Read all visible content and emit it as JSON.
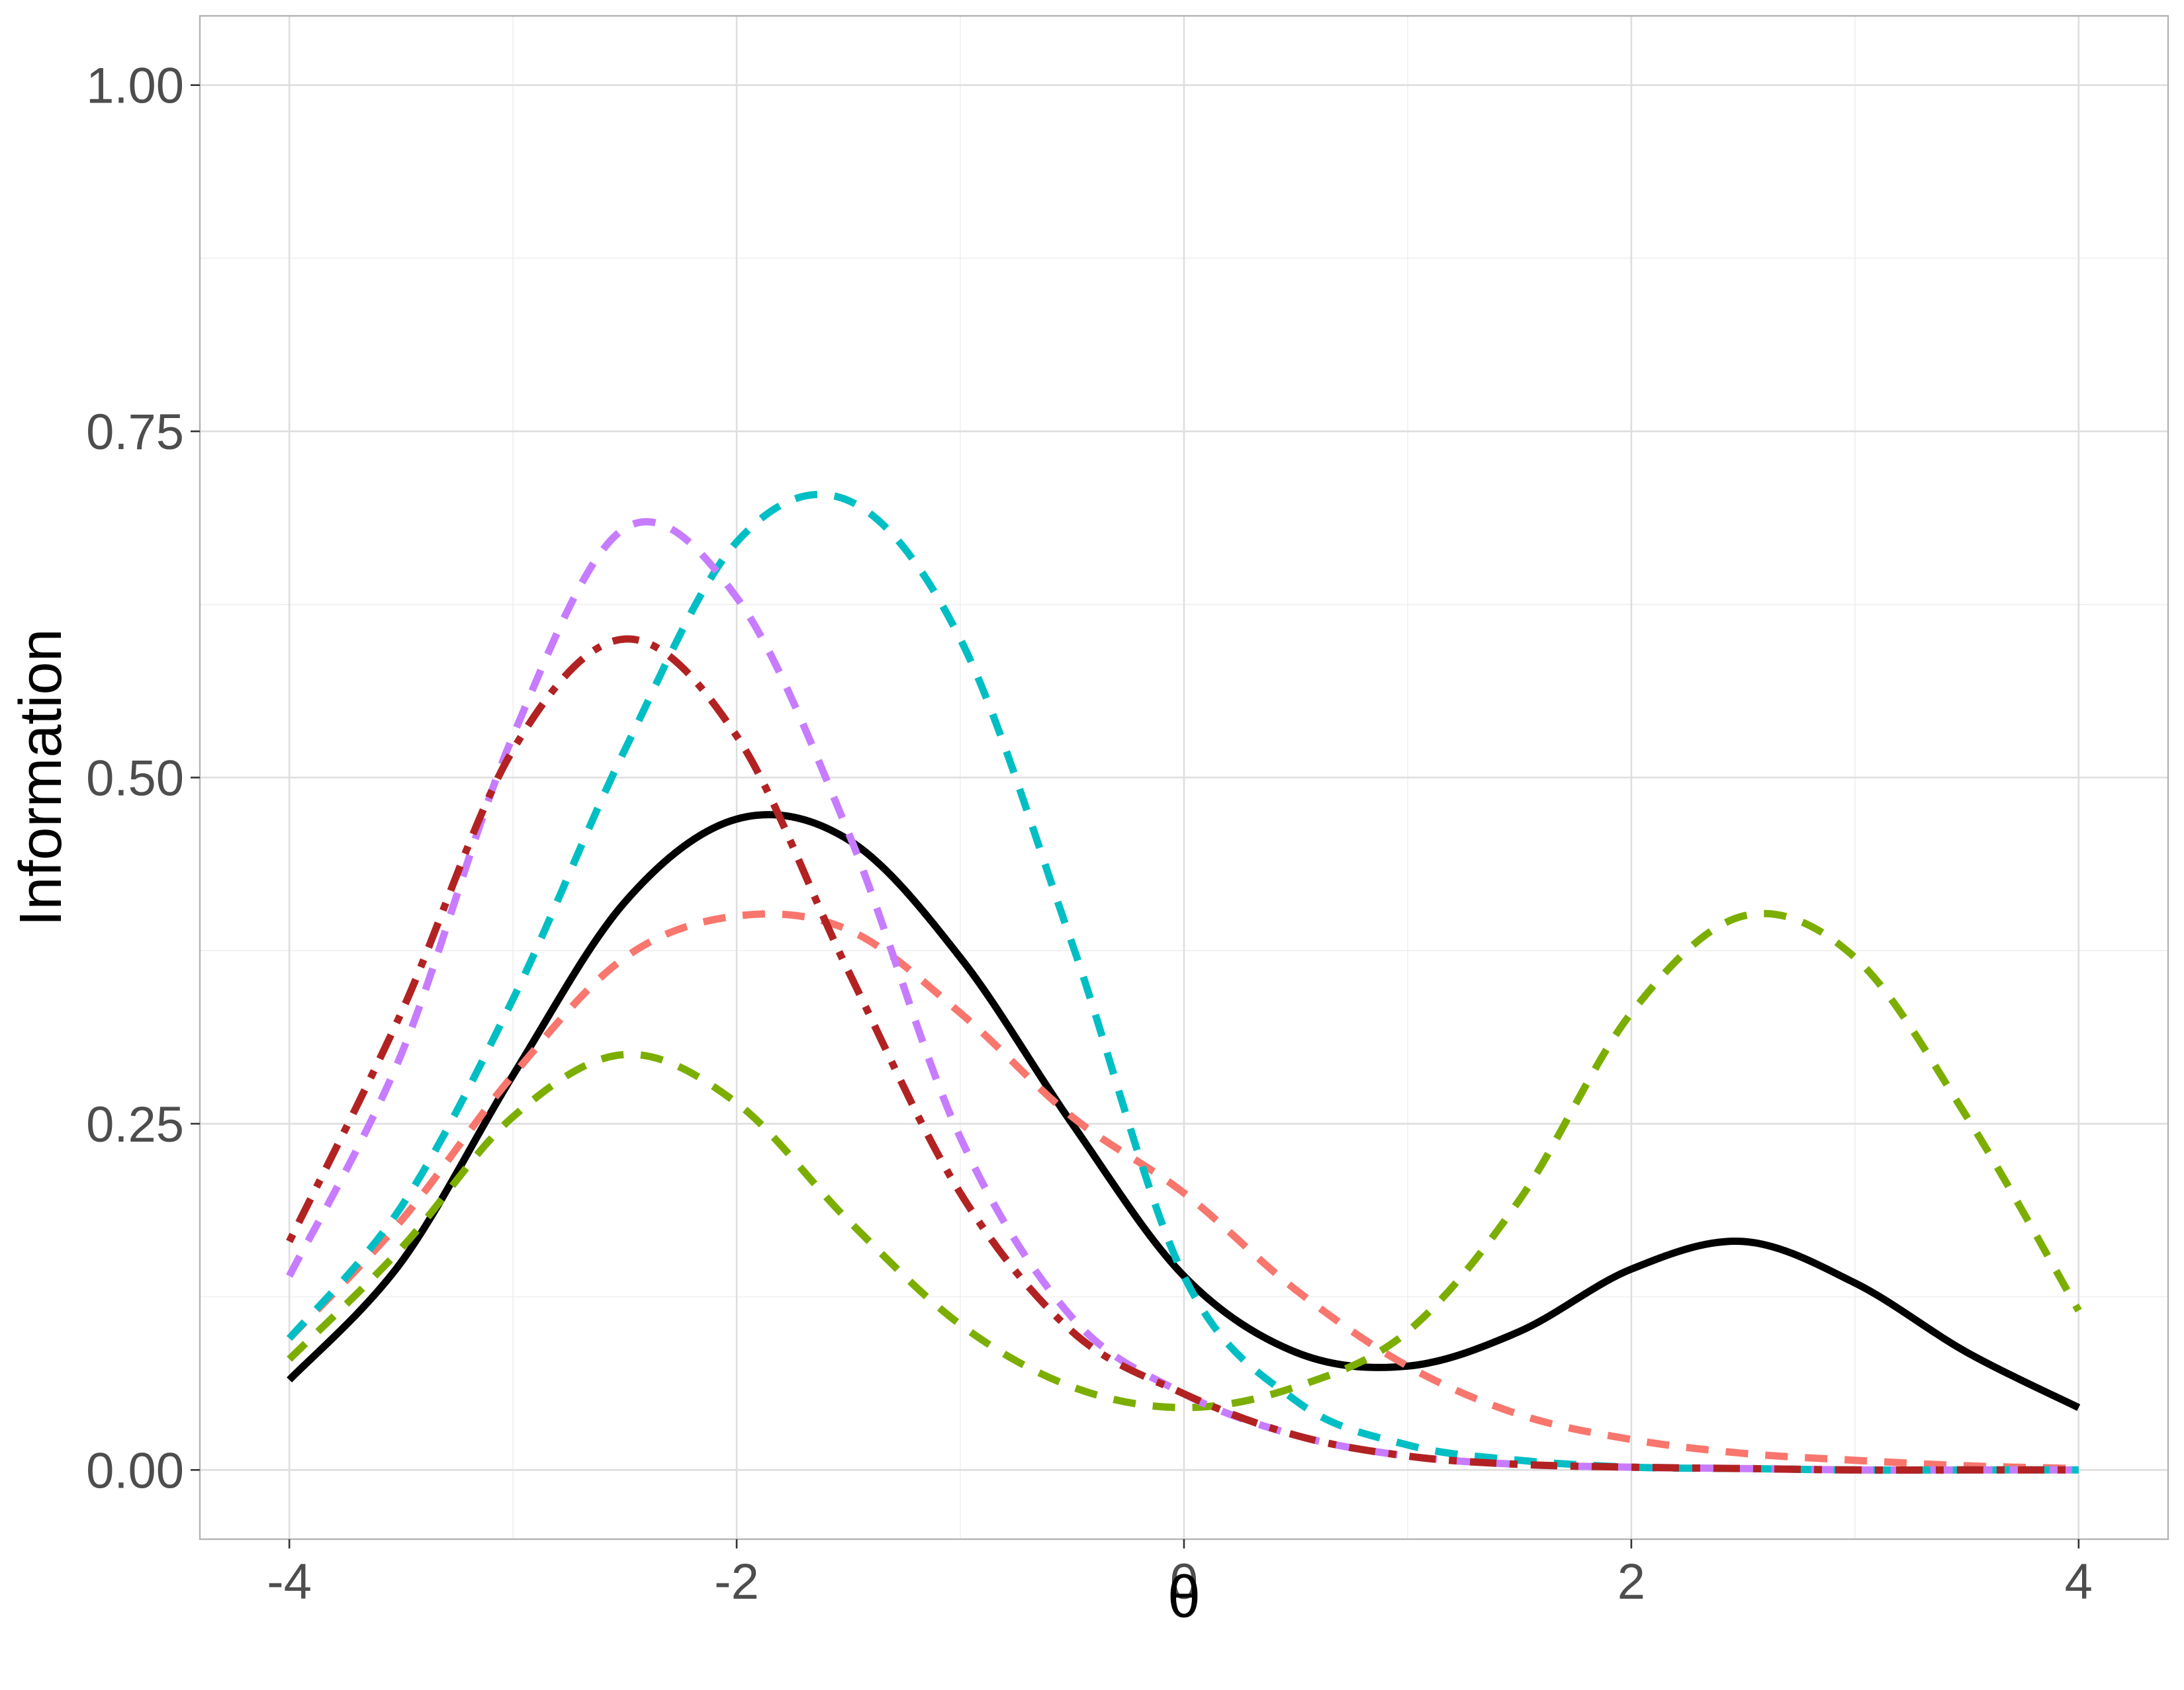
{
  "chart_data": {
    "type": "line",
    "title": "",
    "xlabel": "θ",
    "ylabel": "Information",
    "xlim": [
      -4.4,
      4.4
    ],
    "ylim": [
      -0.05,
      1.05
    ],
    "x_ticks": [
      -4,
      -2,
      0,
      2,
      4
    ],
    "x_tick_labels": [
      "-4",
      "-2",
      "0",
      "2",
      "4"
    ],
    "y_ticks": [
      0,
      0.25,
      0.5,
      0.75,
      1.0
    ],
    "y_tick_labels": [
      "0.00",
      "0.25",
      "0.50",
      "0.75",
      "1.00"
    ],
    "grid": true,
    "legend": "none",
    "x": [
      -4.0,
      -3.5,
      -3.0,
      -2.5,
      -2.0,
      -1.5,
      -1.0,
      -0.5,
      0.0,
      0.5,
      1.0,
      1.5,
      2.0,
      2.5,
      3.0,
      3.5,
      4.0
    ],
    "series": [
      {
        "color": "#000000",
        "line_style": "solid",
        "values": [
          0.065,
          0.15,
          0.285,
          0.41,
          0.47,
          0.455,
          0.37,
          0.25,
          0.14,
          0.085,
          0.075,
          0.1,
          0.145,
          0.165,
          0.135,
          0.085,
          0.045
        ]
      },
      {
        "color": "#F8766D",
        "line_style": "dashed",
        "values": [
          0.095,
          0.18,
          0.285,
          0.37,
          0.4,
          0.39,
          0.33,
          0.255,
          0.2,
          0.13,
          0.075,
          0.04,
          0.022,
          0.012,
          0.007,
          0.003,
          0.001
        ]
      },
      {
        "color": "#7CAE00",
        "line_style": "dashed",
        "values": [
          0.08,
          0.16,
          0.255,
          0.3,
          0.265,
          0.18,
          0.105,
          0.06,
          0.045,
          0.06,
          0.1,
          0.195,
          0.33,
          0.4,
          0.37,
          0.255,
          0.115
        ]
      },
      {
        "color": "#00BFC4",
        "line_style": "dashed",
        "values": [
          0.095,
          0.19,
          0.34,
          0.52,
          0.67,
          0.7,
          0.6,
          0.38,
          0.14,
          0.05,
          0.018,
          0.007,
          0.002,
          0.001,
          0.0,
          0.0,
          0.0
        ]
      },
      {
        "color": "#C77CFF",
        "line_style": "dashed",
        "values": [
          0.14,
          0.3,
          0.53,
          0.68,
          0.63,
          0.46,
          0.24,
          0.11,
          0.055,
          0.025,
          0.01,
          0.004,
          0.002,
          0.001,
          0.0,
          0.0,
          0.0
        ]
      },
      {
        "color": "#B22222",
        "line_style": "dotdash",
        "values": [
          0.165,
          0.33,
          0.52,
          0.6,
          0.53,
          0.36,
          0.2,
          0.1,
          0.055,
          0.025,
          0.01,
          0.004,
          0.002,
          0.001,
          0.0,
          0.0,
          0.0
        ]
      }
    ]
  }
}
